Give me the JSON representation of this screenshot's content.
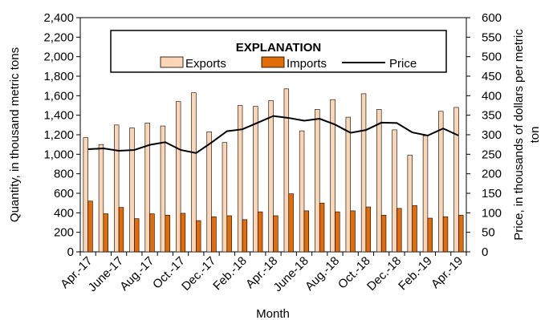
{
  "chart_data": {
    "type": "bar",
    "months": [
      "Apr.-17",
      "May-17",
      "June-17",
      "July-17",
      "Aug.-17",
      "Sept.-17",
      "Oct.-17",
      "Nov.-17",
      "Dec.-17",
      "Jan.-18",
      "Feb.-18",
      "Mar.-18",
      "Apr.-18",
      "May-18",
      "June-18",
      "July-18",
      "Aug.-18",
      "Sept.-18",
      "Oct.-18",
      "Nov.-18",
      "Dec.-18",
      "Jan.-19",
      "Feb.-19",
      "Mar.-19",
      "Apr.-19"
    ],
    "x_tick_labels": [
      "Apr.-17",
      "June-17",
      "Aug.-17",
      "Oct.-17",
      "Dec.-17",
      "Feb.-18",
      "Apr.-18",
      "June-18",
      "Aug.-18",
      "Oct.-18",
      "Dec.-18",
      "Feb.-19",
      "Apr.-19"
    ],
    "series": [
      {
        "name": "Exports",
        "axis": "left",
        "color": "#FCD5B4",
        "values": [
          1170,
          1100,
          1300,
          1270,
          1320,
          1290,
          1540,
          1630,
          1230,
          1120,
          1500,
          1490,
          1550,
          1670,
          1240,
          1460,
          1560,
          1380,
          1620,
          1460,
          1250,
          990,
          1190,
          1440,
          1480
        ]
      },
      {
        "name": "Imports",
        "axis": "left",
        "color": "#E36C0A",
        "values": [
          520,
          390,
          455,
          340,
          390,
          375,
          395,
          320,
          360,
          370,
          330,
          410,
          370,
          595,
          420,
          500,
          410,
          420,
          460,
          375,
          445,
          475,
          345,
          360,
          375
        ]
      },
      {
        "name": "Price",
        "axis": "right",
        "type": "line",
        "color": "#000000",
        "values": [
          263,
          265,
          259,
          261,
          274,
          281,
          261,
          253,
          280,
          309,
          314,
          331,
          348,
          343,
          336,
          341,
          326,
          305,
          312,
          331,
          330,
          306,
          298,
          316,
          298
        ]
      }
    ],
    "xlabel": "Month",
    "ylabel": "Quantity, in thousand metric tons",
    "y2label": "Price, in thousands of dollars per metric ton",
    "ylim": [
      0,
      2400
    ],
    "y2lim": [
      0,
      600
    ],
    "yticks": [
      "0",
      "200",
      "400",
      "600",
      "800",
      "1,000",
      "1,200",
      "1,400",
      "1,600",
      "1,800",
      "2,000",
      "2,200",
      "2,400"
    ],
    "y2ticks": [
      "0",
      "50",
      "100",
      "150",
      "200",
      "250",
      "300",
      "350",
      "400",
      "450",
      "500",
      "550",
      "600"
    ],
    "legend": {
      "title": "EXPLANATION",
      "position": "top-center"
    },
    "grid": false
  }
}
